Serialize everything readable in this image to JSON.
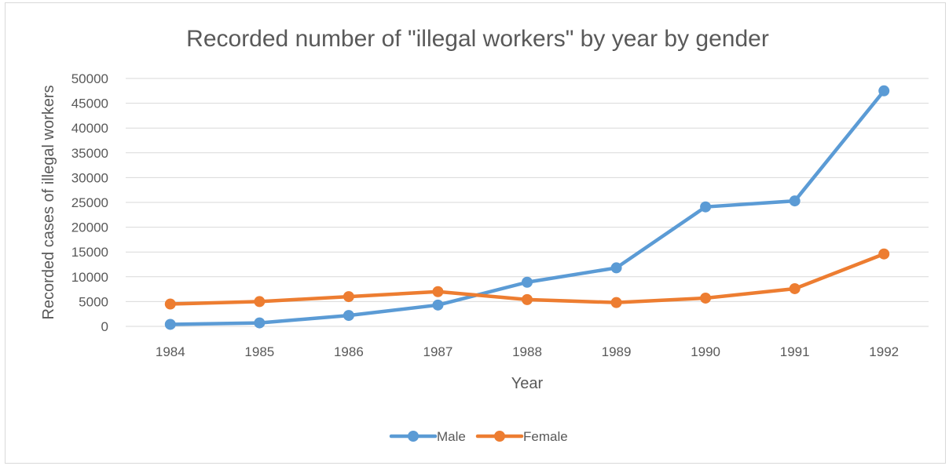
{
  "chart_data": {
    "type": "line",
    "title": "Recorded number of \"illegal workers\" by year by gender",
    "xlabel": "Year",
    "ylabel": "Recorded cases of illegal workers",
    "categories": [
      "1984",
      "1985",
      "1986",
      "1987",
      "1988",
      "1989",
      "1990",
      "1991",
      "1992"
    ],
    "ylim": [
      0,
      50000
    ],
    "yticks": [
      0,
      5000,
      10000,
      15000,
      20000,
      25000,
      30000,
      35000,
      40000,
      45000,
      50000
    ],
    "grid": true,
    "legend_position": "bottom",
    "series": [
      {
        "name": "Male",
        "color": "#5b9bd5",
        "values": [
          400,
          700,
          2200,
          4300,
          8900,
          11800,
          24100,
          25300,
          47500
        ]
      },
      {
        "name": "Female",
        "color": "#ed7d31",
        "values": [
          4500,
          5000,
          6000,
          7000,
          5400,
          4800,
          5700,
          7600,
          14600
        ]
      }
    ]
  }
}
